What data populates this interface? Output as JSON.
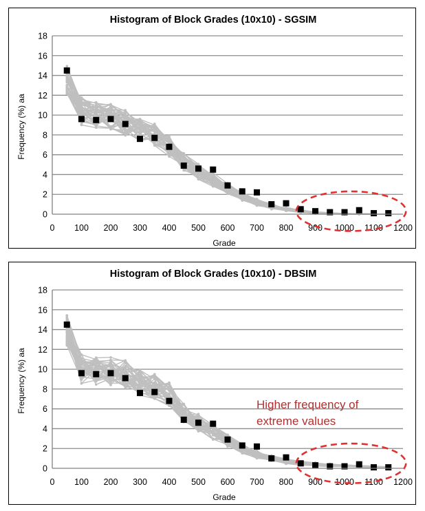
{
  "chart_data": [
    {
      "type": "line",
      "title": "Histogram of Block Grades (10x10) - SGSIM",
      "xlabel": "Grade",
      "ylabel": "Frequency (%)",
      "ylabel_suffix": "aa",
      "xlim": [
        0,
        1200
      ],
      "ylim": [
        0,
        18
      ],
      "x_ticks": [
        0,
        100,
        200,
        300,
        400,
        500,
        600,
        700,
        800,
        900,
        1000,
        1100,
        1200
      ],
      "y_ticks": [
        0,
        2,
        4,
        6,
        8,
        10,
        12,
        14,
        16,
        18
      ],
      "grid": true,
      "x": [
        50,
        100,
        150,
        200,
        250,
        300,
        350,
        400,
        450,
        500,
        550,
        600,
        650,
        700,
        750,
        800,
        850,
        900,
        950,
        1000,
        1050,
        1100,
        1150
      ],
      "series": [
        {
          "role": "reference",
          "color": "#000000",
          "marker": "square",
          "values": [
            14.5,
            9.6,
            9.5,
            9.6,
            9.1,
            7.6,
            7.7,
            6.8,
            4.9,
            4.6,
            4.5,
            2.9,
            2.3,
            2.2,
            1.0,
            1.1,
            0.5,
            0.3,
            0.2,
            0.2,
            0.4,
            0.1,
            0.1
          ]
        },
        {
          "role": "realizations",
          "color": "#bfbfbf",
          "count": 40,
          "mean": [
            13.4,
            10.4,
            10.0,
            9.8,
            9.2,
            8.6,
            8.0,
            6.9,
            5.3,
            4.3,
            3.5,
            2.6,
            1.8,
            1.2,
            0.8,
            0.5,
            0.3,
            0.15,
            0.08,
            0.04,
            0.02,
            0.01,
            0.0
          ],
          "spread": [
            1.6,
            1.4,
            1.3,
            1.3,
            1.3,
            1.2,
            1.2,
            1.1,
            0.9,
            0.8,
            0.7,
            0.6,
            0.45,
            0.35,
            0.3,
            0.2,
            0.15,
            0.1,
            0.06,
            0.04,
            0.03,
            0.02,
            0.01
          ]
        }
      ],
      "highlight": {
        "shape": "dashed-ellipse",
        "color": "#e03030",
        "x_range": [
          835,
          1210
        ],
        "y_range": [
          -1.7,
          2.3
        ]
      },
      "annotation": ""
    },
    {
      "type": "line",
      "title": "Histogram of Block Grades (10x10) - DBSIM",
      "xlabel": "Grade",
      "ylabel": "Frequency (%)",
      "ylabel_suffix": "aa",
      "xlim": [
        0,
        1200
      ],
      "ylim": [
        0,
        18
      ],
      "x_ticks": [
        0,
        100,
        200,
        300,
        400,
        500,
        600,
        700,
        800,
        900,
        1000,
        1100,
        1200
      ],
      "y_ticks": [
        0,
        2,
        4,
        6,
        8,
        10,
        12,
        14,
        16,
        18
      ],
      "grid": true,
      "x": [
        50,
        100,
        150,
        200,
        250,
        300,
        350,
        400,
        450,
        500,
        550,
        600,
        650,
        700,
        750,
        800,
        850,
        900,
        950,
        1000,
        1050,
        1100,
        1150
      ],
      "series": [
        {
          "role": "reference",
          "color": "#000000",
          "marker": "square",
          "values": [
            14.5,
            9.6,
            9.5,
            9.6,
            9.1,
            7.6,
            7.7,
            6.8,
            4.9,
            4.6,
            4.5,
            2.9,
            2.3,
            2.2,
            1.0,
            1.1,
            0.5,
            0.3,
            0.2,
            0.2,
            0.4,
            0.1,
            0.1
          ]
        },
        {
          "role": "realizations",
          "color": "#bfbfbf",
          "count": 40,
          "mean": [
            14.0,
            10.0,
            9.8,
            9.8,
            9.5,
            8.6,
            8.3,
            7.5,
            5.5,
            4.6,
            3.7,
            2.8,
            2.0,
            1.4,
            1.0,
            0.7,
            0.5,
            0.4,
            0.3,
            0.25,
            0.2,
            0.15,
            0.1
          ],
          "spread": [
            1.6,
            1.5,
            1.4,
            1.4,
            1.4,
            1.3,
            1.3,
            1.2,
            1.0,
            0.9,
            0.8,
            0.6,
            0.5,
            0.4,
            0.3,
            0.25,
            0.2,
            0.18,
            0.15,
            0.12,
            0.1,
            0.08,
            0.06
          ]
        }
      ],
      "highlight": {
        "shape": "dashed-ellipse",
        "color": "#e03030",
        "x_range": [
          835,
          1210
        ],
        "y_range": [
          -1.5,
          2.5
        ]
      },
      "annotation": "Higher frequency of\nextreme values"
    }
  ]
}
